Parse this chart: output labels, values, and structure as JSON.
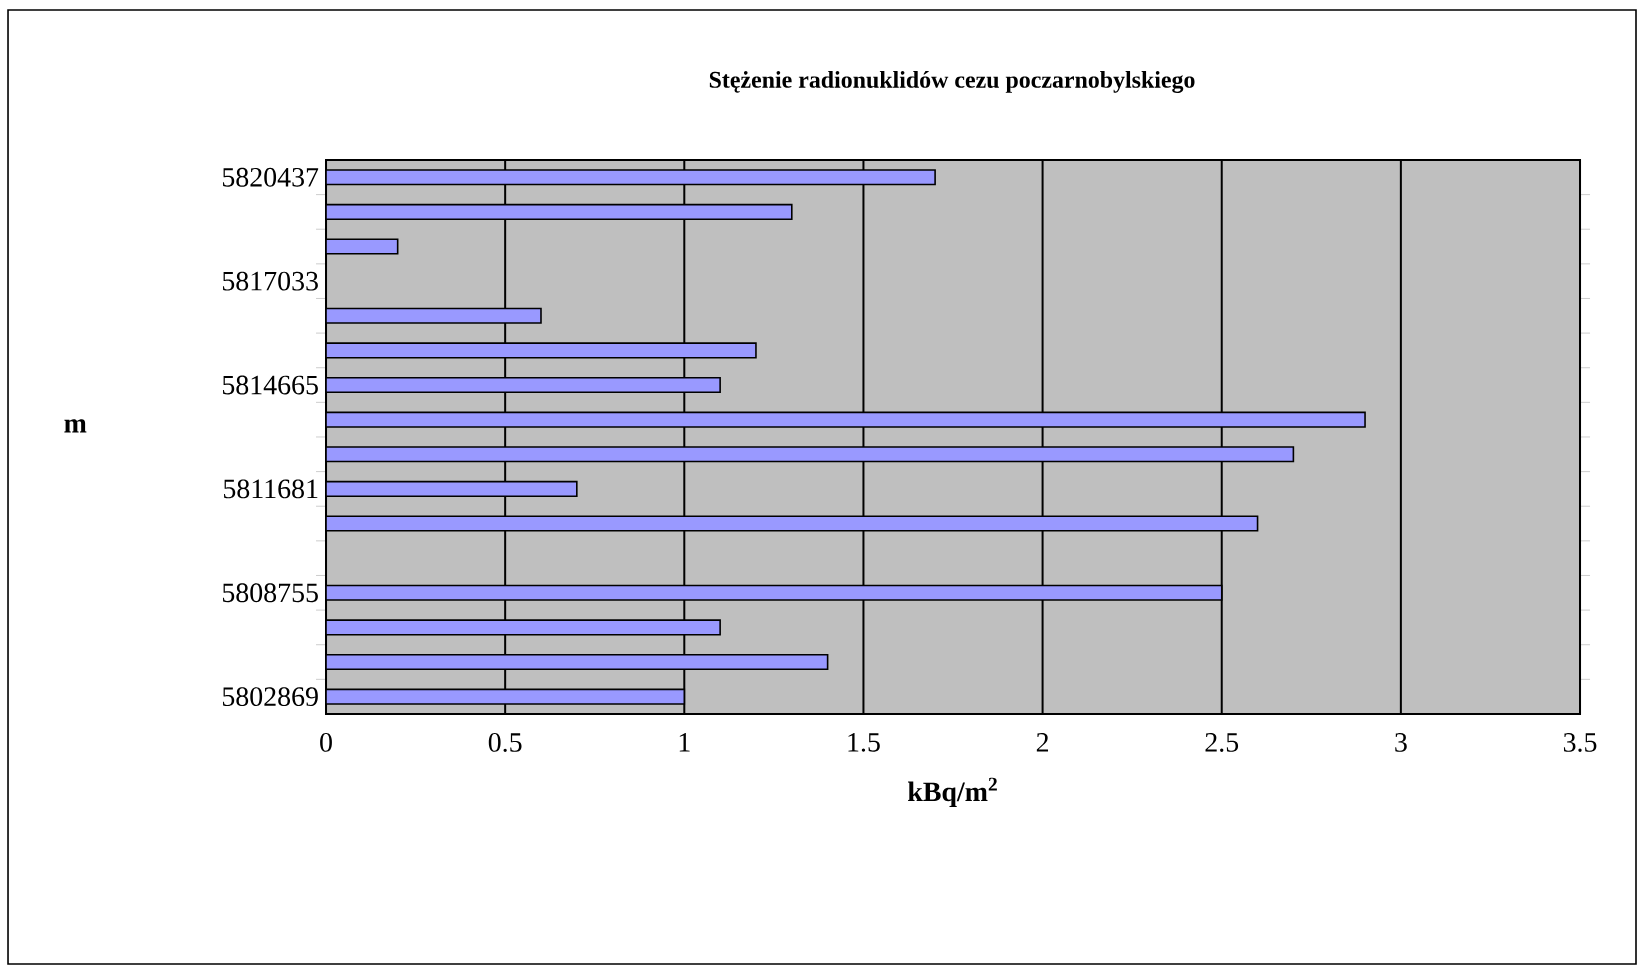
{
  "chart_data": {
    "type": "bar",
    "orientation": "horizontal",
    "title": "Stężenie radionuklidów cezu poczarnobylskiego",
    "xlabel": "kBq/m$^{2}$",
    "ylabel": "m",
    "categories": [
      "5820437",
      null,
      null,
      "5817033",
      null,
      null,
      "5814665",
      null,
      null,
      "5811681",
      null,
      null,
      "5808755",
      null,
      null,
      "5802869"
    ],
    "values": [
      1.7,
      1.3,
      0.2,
      null,
      0.6,
      1.2,
      1.1,
      2.9,
      2.7,
      0.7,
      2.6,
      null,
      2.5,
      1.1,
      1.4,
      1.0
    ],
    "color": "#9999ff",
    "xlim": [
      0,
      3.5
    ],
    "xticks": [
      0,
      0.5,
      1,
      1.5,
      2,
      2.5,
      3,
      3.5
    ],
    "grid": "x"
  }
}
